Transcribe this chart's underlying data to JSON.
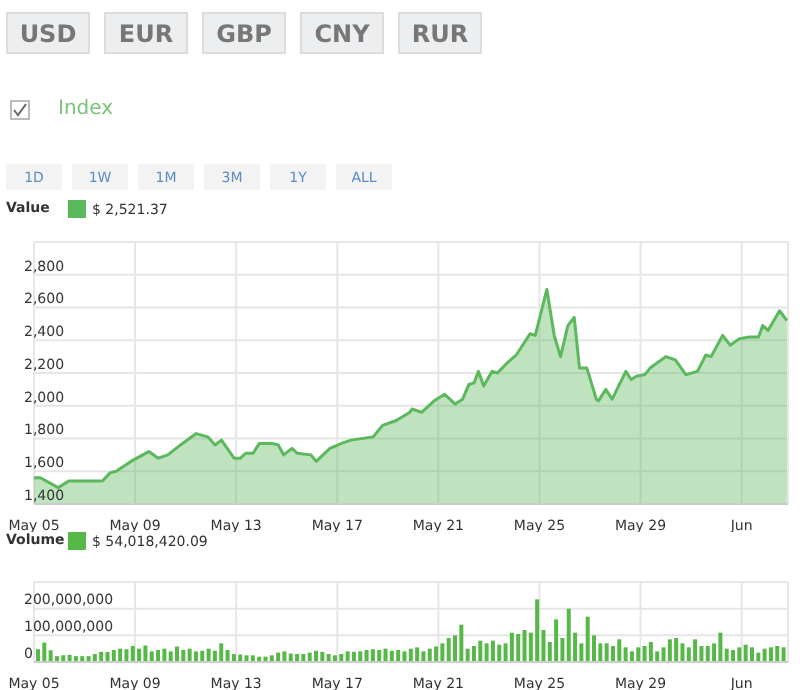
{
  "chart_data": [
    {
      "type": "other",
      "annotations": [
        "USD",
        "EUR",
        "GBP",
        "CNY",
        "RUR",
        "Index",
        "1D",
        "1W",
        "1M",
        "3M",
        "1Y",
        "ALL"
      ]
    },
    {
      "type": "area",
      "title": "Value",
      "legend": "top left",
      "grid": true,
      "x": [
        "--05-05T00:00",
        "--05-05T06:00",
        "--05-05T23:00",
        "--05-06T09:00",
        "--05-07T08:00",
        "--05-07T17:00",
        "--05-08T00:00",
        "--05-08T06:00",
        "--05-08T20:00",
        "--05-09T13:00",
        "--05-09T22:00",
        "--05-10T07:00",
        "--05-10T21:00",
        "--05-11T10:00",
        "--05-11T21:00",
        "--05-12T04:00",
        "--05-12T10:00",
        "--05-12T22:00",
        "--05-13T04:00",
        "--05-13T09:00",
        "--05-13T16:00",
        "--05-13T22:00",
        "--05-14T10:00",
        "--05-14T16:00",
        "--05-14T21:00",
        "--05-15T05:00",
        "--05-15T10:00",
        "--05-15T23:00",
        "--05-16T04:00",
        "--05-16T17:00",
        "--05-17T04:00",
        "--05-17T13:00",
        "--05-18T10:00",
        "--05-18T19:00",
        "--05-19T08:00",
        "--05-19T21:00",
        "--05-19T23:00",
        "--05-20T08:00",
        "--05-20T20:00",
        "--05-21T06:00",
        "--05-21T16:00",
        "--05-21T23:00",
        "--05-22T05:00",
        "--05-22T10:00",
        "--05-22T14:00",
        "--05-22T19:00",
        "--05-23T03:00",
        "--05-23T08:00",
        "--05-23T17:00",
        "--05-24T02:00",
        "--05-24T15:00",
        "--05-24T20:00",
        "--05-25T07:00",
        "--05-25T14:00",
        "--05-25T20:00",
        "--05-26T03:00",
        "--05-26T09:00",
        "--05-26T14:00",
        "--05-26T21:00",
        "--05-27T06:00",
        "--05-27T08:00",
        "--05-27T15:00",
        "--05-27T21:00",
        "--05-28T10:00",
        "--05-28T15:00",
        "--05-28T20:00",
        "--05-29T04:00",
        "--05-29T09:00",
        "--05-30T00:00",
        "--05-30T09:00",
        "--05-30T19:00",
        "--05-31T06:00",
        "--05-31T14:00",
        "--05-31T19:00",
        "--06-01T06:00",
        "--06-01T13:00",
        "--06-01T22:00",
        "--06-02T07:00",
        "--06-02T16:00",
        "--06-02T20:00",
        "--06-03T01:00",
        "--06-03T12:00",
        "--06-03T19:00"
      ],
      "series": [
        {
          "name": "$ 2,521.37",
          "color": "#5cb85c",
          "values": [
            1560,
            1560,
            1500,
            1540,
            1540,
            1540,
            1590,
            1600,
            1660,
            1720,
            1680,
            1700,
            1770,
            1830,
            1810,
            1760,
            1790,
            1680,
            1680,
            1710,
            1710,
            1770,
            1770,
            1760,
            1700,
            1740,
            1710,
            1700,
            1660,
            1740,
            1770,
            1790,
            1810,
            1880,
            1910,
            1960,
            1980,
            1960,
            2030,
            2070,
            2010,
            2040,
            2130,
            2140,
            2210,
            2120,
            2210,
            2200,
            2260,
            2310,
            2440,
            2430,
            2710,
            2430,
            2300,
            2490,
            2540,
            2230,
            2230,
            2040,
            2030,
            2100,
            2040,
            2210,
            2160,
            2180,
            2190,
            2230,
            2300,
            2280,
            2190,
            2210,
            2310,
            2300,
            2430,
            2370,
            2410,
            2420,
            2420,
            2490,
            2460,
            2580,
            2520
          ]
        }
      ],
      "xlim": [
        "--05-05T00:00",
        "--06-03T20:00"
      ],
      "xticks": [
        {
          "value": "--05-05",
          "label": "May 05"
        },
        {
          "value": "--05-09",
          "label": "May 09"
        },
        {
          "value": "--05-13",
          "label": "May 13"
        },
        {
          "value": "--05-17",
          "label": "May 17"
        },
        {
          "value": "--05-21",
          "label": "May 21"
        },
        {
          "value": "--05-25",
          "label": "May 25"
        },
        {
          "value": "--05-29",
          "label": "May 29"
        },
        {
          "value": "--06-02",
          "label": "Jun"
        }
      ],
      "ylim": [
        1400,
        3000
      ],
      "yticks": [
        {
          "value": 1400,
          "label": "1,400"
        },
        {
          "value": 1600,
          "label": "1,600"
        },
        {
          "value": 1800,
          "label": "1,800"
        },
        {
          "value": 2000,
          "label": "2,000"
        },
        {
          "value": 2200,
          "label": "2,200"
        },
        {
          "value": 2400,
          "label": "2,400"
        },
        {
          "value": 2600,
          "label": "2,600"
        },
        {
          "value": 2800,
          "label": "2,800"
        },
        {
          "value": 3000,
          "label": null
        }
      ]
    },
    {
      "type": "bar",
      "title": "Volume",
      "legend": "top left",
      "grid": true,
      "x": [
        "--05-05T03:00",
        "--05-05T09:00",
        "--05-05T15:00",
        "--05-05T21:00",
        "--05-06T03:00",
        "--05-06T09:00",
        "--05-06T15:00",
        "--05-06T21:00",
        "--05-07T03:00",
        "--05-07T09:00",
        "--05-07T15:00",
        "--05-07T21:00",
        "--05-08T03:00",
        "--05-08T09:00",
        "--05-08T15:00",
        "--05-08T21:00",
        "--05-09T03:00",
        "--05-09T09:00",
        "--05-09T15:00",
        "--05-09T21:00",
        "--05-10T03:00",
        "--05-10T09:00",
        "--05-10T15:00",
        "--05-10T21:00",
        "--05-11T03:00",
        "--05-11T09:00",
        "--05-11T15:00",
        "--05-11T21:00",
        "--05-12T03:00",
        "--05-12T09:00",
        "--05-12T15:00",
        "--05-12T21:00",
        "--05-13T03:00",
        "--05-13T09:00",
        "--05-13T15:00",
        "--05-13T21:00",
        "--05-14T03:00",
        "--05-14T09:00",
        "--05-14T15:00",
        "--05-14T21:00",
        "--05-15T03:00",
        "--05-15T09:00",
        "--05-15T15:00",
        "--05-15T21:00",
        "--05-16T03:00",
        "--05-16T09:00",
        "--05-16T15:00",
        "--05-16T21:00",
        "--05-17T03:00",
        "--05-17T09:00",
        "--05-17T15:00",
        "--05-17T21:00",
        "--05-18T03:00",
        "--05-18T09:00",
        "--05-18T15:00",
        "--05-18T21:00",
        "--05-19T03:00",
        "--05-19T09:00",
        "--05-19T15:00",
        "--05-19T21:00",
        "--05-20T03:00",
        "--05-20T09:00",
        "--05-20T15:00",
        "--05-20T21:00",
        "--05-21T03:00",
        "--05-21T09:00",
        "--05-21T15:00",
        "--05-21T21:00",
        "--05-22T03:00",
        "--05-22T09:00",
        "--05-22T15:00",
        "--05-22T21:00",
        "--05-23T03:00",
        "--05-23T09:00",
        "--05-23T15:00",
        "--05-23T21:00",
        "--05-24T03:00",
        "--05-24T09:00",
        "--05-24T15:00",
        "--05-24T21:00",
        "--05-25T03:00",
        "--05-25T09:00",
        "--05-25T15:00",
        "--05-25T21:00",
        "--05-26T03:00",
        "--05-26T09:00",
        "--05-26T15:00",
        "--05-26T21:00",
        "--05-27T03:00",
        "--05-27T09:00",
        "--05-27T15:00",
        "--05-27T21:00",
        "--05-28T03:00",
        "--05-28T09:00",
        "--05-28T15:00",
        "--05-28T21:00",
        "--05-29T03:00",
        "--05-29T09:00",
        "--05-29T15:00",
        "--05-29T21:00",
        "--05-30T03:00",
        "--05-30T09:00",
        "--05-30T15:00",
        "--05-30T21:00",
        "--05-31T03:00",
        "--05-31T09:00",
        "--05-31T15:00",
        "--05-31T21:00",
        "--06-01T03:00",
        "--06-01T09:00",
        "--06-01T15:00",
        "--06-01T21:00",
        "--06-02T03:00",
        "--06-02T09:00",
        "--06-02T15:00",
        "--06-02T21:00",
        "--06-03T03:00",
        "--06-03T09:00",
        "--06-03T15:00"
      ],
      "series": [
        {
          "name": "$ 54,018,420.09",
          "color": "#56b947",
          "values": [
            48000000,
            73000000,
            44000000,
            22000000,
            25000000,
            27000000,
            22000000,
            22000000,
            22000000,
            30000000,
            38000000,
            38000000,
            45000000,
            50000000,
            48000000,
            60000000,
            50000000,
            62000000,
            40000000,
            45000000,
            50000000,
            40000000,
            58000000,
            45000000,
            50000000,
            40000000,
            42000000,
            50000000,
            42000000,
            70000000,
            45000000,
            30000000,
            28000000,
            25000000,
            25000000,
            20000000,
            20000000,
            25000000,
            35000000,
            40000000,
            32000000,
            30000000,
            30000000,
            35000000,
            42000000,
            38000000,
            30000000,
            25000000,
            30000000,
            40000000,
            38000000,
            40000000,
            45000000,
            48000000,
            45000000,
            50000000,
            42000000,
            45000000,
            40000000,
            50000000,
            55000000,
            40000000,
            50000000,
            58000000,
            70000000,
            90000000,
            100000000,
            140000000,
            50000000,
            60000000,
            80000000,
            70000000,
            80000000,
            65000000,
            70000000,
            110000000,
            105000000,
            120000000,
            110000000,
            235000000,
            120000000,
            75000000,
            160000000,
            90000000,
            200000000,
            110000000,
            70000000,
            170000000,
            100000000,
            70000000,
            70000000,
            60000000,
            85000000,
            55000000,
            40000000,
            55000000,
            60000000,
            75000000,
            40000000,
            55000000,
            85000000,
            90000000,
            70000000,
            55000000,
            85000000,
            60000000,
            60000000,
            70000000,
            110000000,
            50000000,
            45000000,
            55000000,
            65000000,
            55000000,
            35000000,
            50000000,
            55000000,
            60000000,
            55000000
          ]
        }
      ],
      "xlim": [
        "--05-05T00:00",
        "--06-03T20:00"
      ],
      "xticks": [
        {
          "value": "--05-05",
          "label": "May 05"
        },
        {
          "value": "--05-09",
          "label": "May 09"
        },
        {
          "value": "--05-13",
          "label": "May 13"
        },
        {
          "value": "--05-17",
          "label": "May 17"
        },
        {
          "value": "--05-21",
          "label": "May 21"
        },
        {
          "value": "--05-25",
          "label": "May 25"
        },
        {
          "value": "--05-29",
          "label": "May 29"
        },
        {
          "value": "--06-02",
          "label": "Jun"
        }
      ],
      "ylim": [
        0,
        300000000
      ],
      "yticks": [
        {
          "value": 0,
          "label": "0"
        },
        {
          "value": 100000000,
          "label": "100,000,000"
        },
        {
          "value": 200000000,
          "label": "200,000,000"
        },
        {
          "value": 300000000,
          "label": null
        }
      ]
    }
  ]
}
